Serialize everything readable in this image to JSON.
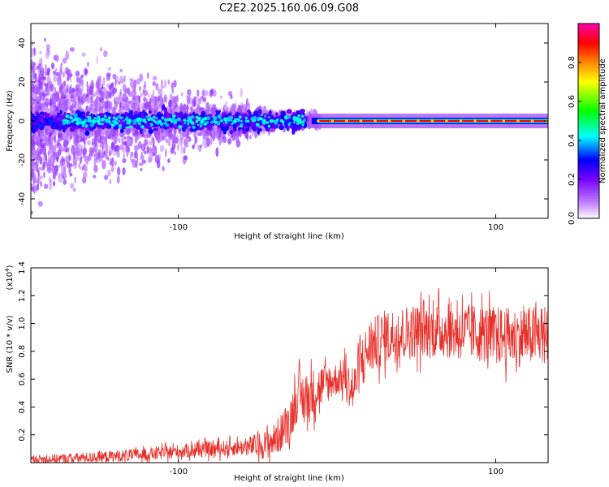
{
  "title": "C2E2.2025.160.06.09.G08",
  "chart_data": [
    {
      "type": "heatmap",
      "title": "C2E2.2025.160.06.09.G08",
      "xlabel": "Height of straight line (km)",
      "ylabel": "Frequency (Hz)",
      "xlim": [
        -193,
        133
      ],
      "ylim": [
        -50,
        50
      ],
      "xticks": [
        -100,
        100
      ],
      "yticks": [
        -40,
        -20,
        0,
        20,
        40
      ],
      "colorbar": {
        "label": "Normalized spectral amplitude",
        "range": [
          0,
          1
        ],
        "ticks": [
          0.0,
          0.2,
          0.4,
          0.6,
          0.8
        ],
        "tick_labels": [
          "0.0",
          "0.2",
          "0.4",
          "0.6",
          "0.8"
        ],
        "colors": [
          "#ffffff",
          "#8800ff",
          "#0000ff",
          "#00ffff",
          "#00ff00",
          "#ffff00",
          "#ff8800",
          "#ff0000",
          "#ff00aa"
        ]
      },
      "features": {
        "carrier_frequency_hz": 0,
        "carrier_start_km": -12,
        "scatter_end_km": -20,
        "scatter_amplitude": 0.3,
        "carrier_amplitude": 0.85,
        "series_color": "#ff0000"
      }
    },
    {
      "type": "line",
      "xlabel": "Height of straight line (km)",
      "ylabel": "SNR (10 * v/v)",
      "yscale_label": "(x10",
      "yscale_exponent": "4",
      "yscale_suffix": ")",
      "xlim": [
        -193,
        133
      ],
      "ylim": [
        0,
        1.4
      ],
      "xticks": [
        -100,
        100
      ],
      "yticks": [
        0.2,
        0.4,
        0.6,
        0.8,
        1.0,
        1.2,
        1.4
      ],
      "ytick_labels": [
        "0.2",
        "0.4",
        "0.6",
        "0.8",
        "1.0",
        "1.2",
        "1.4"
      ],
      "series": [
        {
          "name": "SNR",
          "color": "#e8302a",
          "trend_x": [
            -193,
            -150,
            -120,
            -90,
            -60,
            -45,
            -40,
            -35,
            -30,
            -25,
            -20,
            -15,
            -10,
            -5,
            0,
            5,
            10,
            15,
            20,
            30,
            50,
            70,
            90,
            110,
            133
          ],
          "trend_y": [
            0.02,
            0.04,
            0.06,
            0.09,
            0.11,
            0.13,
            0.16,
            0.22,
            0.3,
            0.48,
            0.45,
            0.5,
            0.55,
            0.58,
            0.6,
            0.62,
            0.5,
            0.72,
            0.82,
            0.9,
            0.95,
            0.95,
            0.93,
            0.9,
            0.92
          ],
          "noise_x": [
            -193,
            -60,
            -40,
            -20,
            0,
            20,
            60,
            133
          ],
          "noise_y": [
            0.03,
            0.06,
            0.12,
            0.2,
            0.12,
            0.2,
            0.2,
            0.22
          ]
        }
      ]
    }
  ]
}
